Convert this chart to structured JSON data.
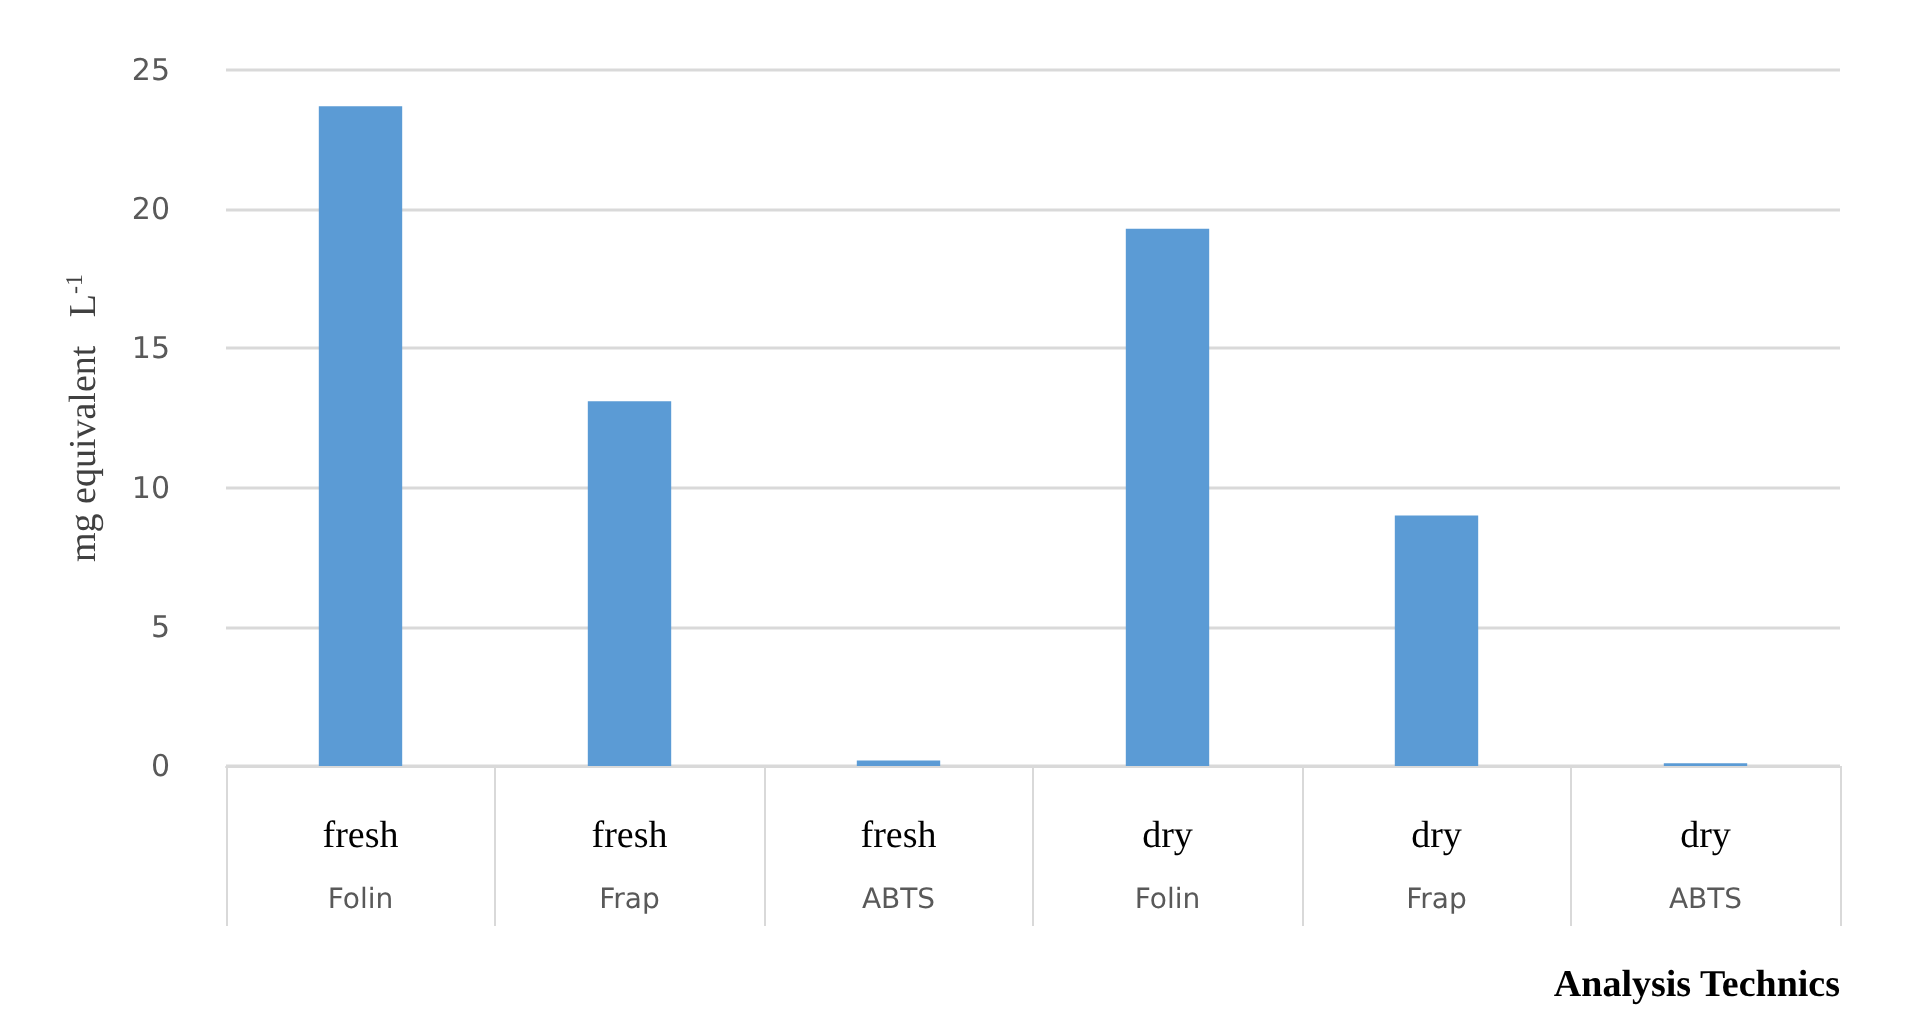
{
  "chart_data": {
    "type": "bar",
    "xlabel": "Analysis Technics",
    "ylabel": "mg equivalent   L$^{-1}$",
    "categories": [
      "fresh\nFolin",
      "fresh\nFrap",
      "fresh\nABTS",
      "dry\nFolin",
      "dry\nFrap",
      "dry\nABTS"
    ],
    "values": [
      23.7,
      13.1,
      0.2,
      19.3,
      9.0,
      0.1
    ],
    "color": "#5b9bd5",
    "ylim": [
      0,
      25
    ],
    "yticks": [
      0,
      5,
      10,
      15,
      20,
      25
    ],
    "grid": "y"
  }
}
